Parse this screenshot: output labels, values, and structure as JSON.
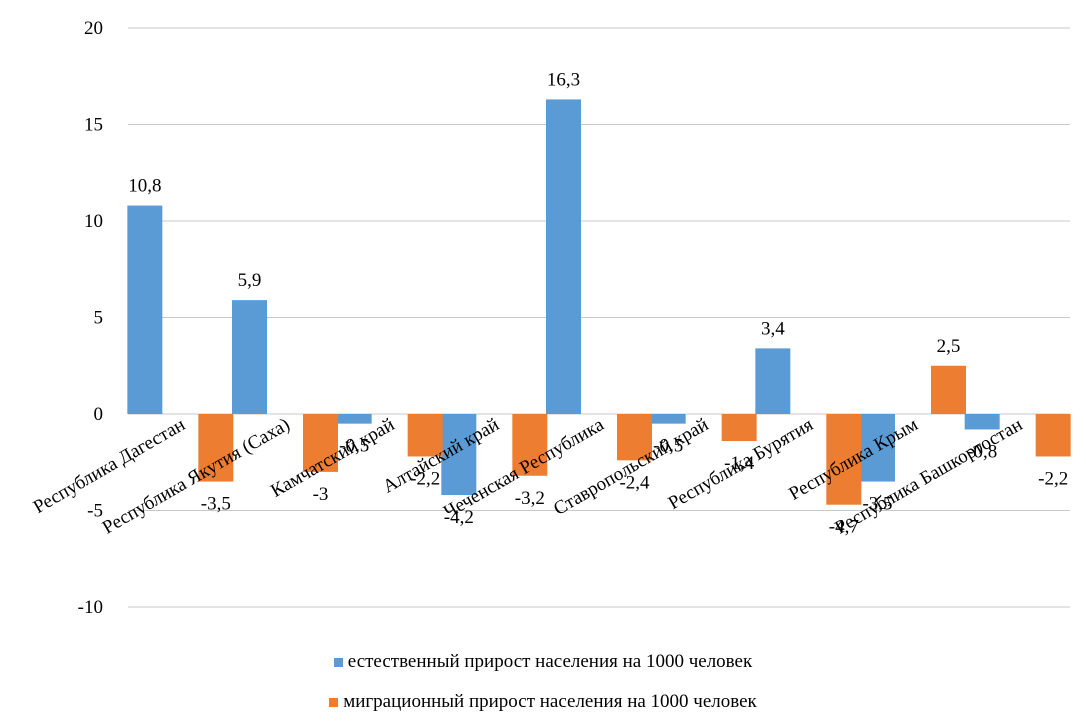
{
  "colors": {
    "natural": "#5B9BD5",
    "migration": "#ED7D31",
    "grid": "#C8C8C8"
  },
  "chart_data": {
    "type": "bar",
    "title": "",
    "xlabel": "",
    "ylabel": "",
    "ylim": [
      -10,
      20
    ],
    "yticks": [
      -10,
      -5,
      0,
      5,
      10,
      15,
      20
    ],
    "ytick_labels": [
      "-10",
      "-5",
      "0",
      "5",
      "10",
      "15",
      "20"
    ],
    "grid": true,
    "legend_position": "bottom",
    "categories": [
      "Республика Дагестан",
      "Республика Якутия (Саха)",
      "Камчатский край",
      "Алтайский край",
      "Чеченская Республика",
      "Ставропольский край",
      "Республика Бурятия",
      "Республика Крым",
      "Республика Башкортостан"
    ],
    "series": [
      {
        "name": "естественный прирост населения на 1000  человек",
        "values": [
          10.8,
          5.9,
          -0.5,
          -4.2,
          16.3,
          -0.5,
          3.4,
          -3.5,
          -0.8
        ],
        "labels": [
          "10,8",
          "5,9",
          "-0,5",
          "-4,2",
          "16,3",
          "-0,5",
          "3,4",
          "-3,5",
          "-0,8"
        ]
      },
      {
        "name": "миграционный прирост населения на 1000  человек",
        "values": [
          -3.5,
          -3,
          -2.2,
          -3.2,
          -2.4,
          -1.4,
          -4.7,
          2.5,
          -2.2
        ],
        "labels": [
          "-3,5",
          "-3",
          "-2,2",
          "-3,2",
          "-2,4",
          "-1,4",
          "-4,7",
          "2,5",
          "-2,2"
        ]
      }
    ]
  }
}
